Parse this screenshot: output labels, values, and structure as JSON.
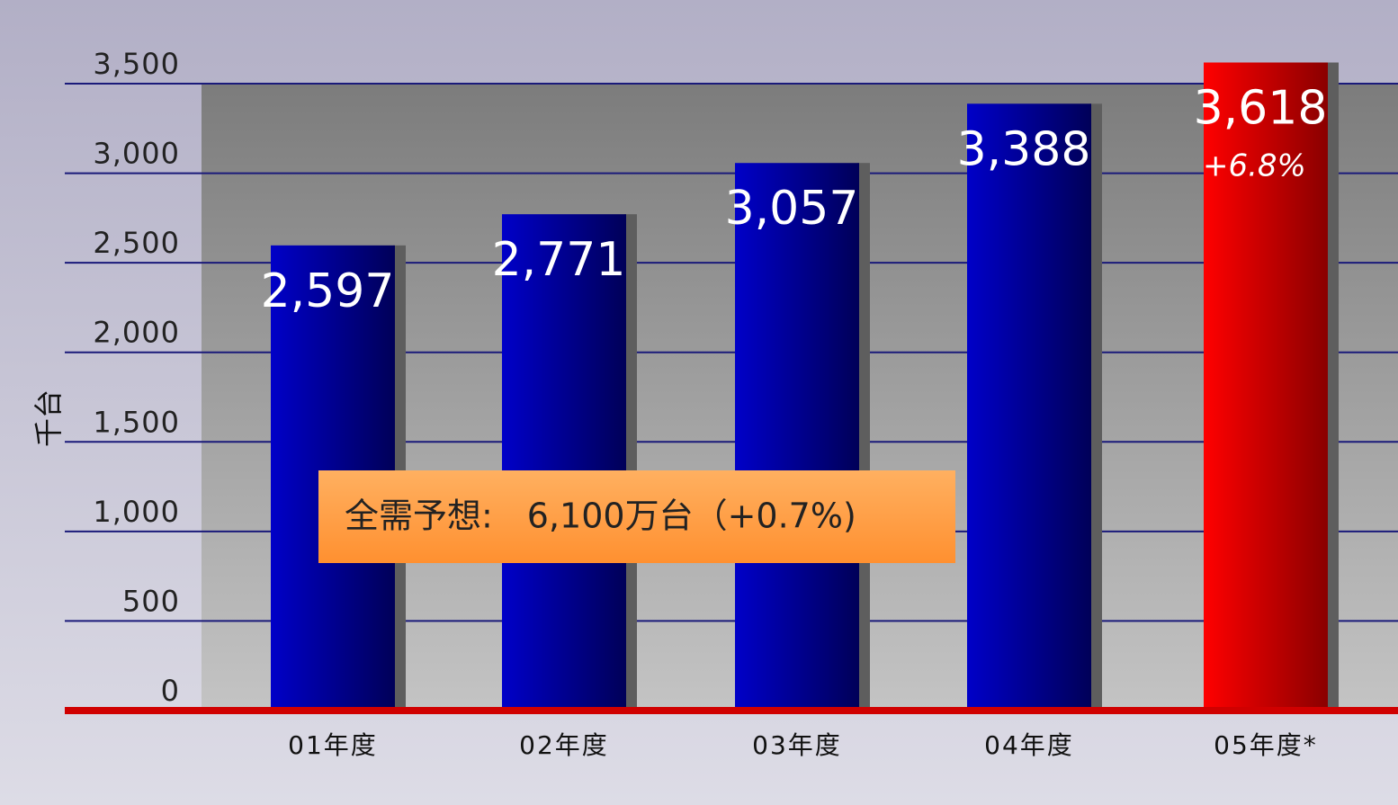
{
  "chart_data": {
    "type": "bar",
    "y_label": "千台",
    "categories": [
      "01年度",
      "02年度",
      "03年度",
      "04年度",
      "05年度*"
    ],
    "values": [
      2597,
      2771,
      3057,
      3388,
      3618
    ],
    "value_labels": [
      "2,597",
      "2,771",
      "3,057",
      "3,388",
      "3,618"
    ],
    "colors": [
      "#0000c8",
      "#0000c8",
      "#0000c8",
      "#0000c8",
      "#ff0000"
    ],
    "growth_annotation": "+6.8%",
    "box_annotation": "全需予想:　6,100万台（+0.7%)",
    "ylim": [
      0,
      3500
    ],
    "yticks": [
      0,
      500,
      {
        "value": 1000,
        "label": "1,000"
      },
      {
        "value": 1500,
        "label": "1,500"
      },
      {
        "value": 2000,
        "label": "2,000"
      },
      {
        "value": 2500,
        "label": "2,500"
      },
      {
        "value": 3000,
        "label": "3,000"
      },
      {
        "value": 3500,
        "label": "3,500"
      }
    ],
    "grid": true
  }
}
